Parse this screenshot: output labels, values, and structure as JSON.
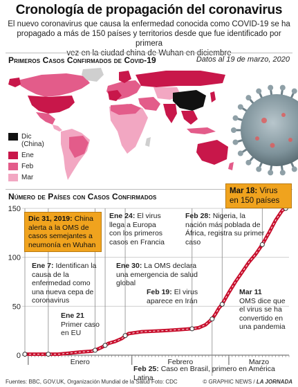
{
  "title": "Cronología de propagación del coronavirus",
  "subtitle": [
    "El nuevo coronavirus que causa la enfermedad conocida como COVID-19 se ha",
    "propagado a más de 150 países y territorios desde que fue identificado por primera",
    "vez en la ciudad china de Wuhan en diciembre"
  ],
  "map_section": {
    "heading": "Primeros Casos Confirmados de Covid-19",
    "date_note": "Datos al 19 de marzo, 2020",
    "legend": [
      {
        "label": "Dic",
        "sublabel": "(China)",
        "color": "#111111"
      },
      {
        "label": "Ene",
        "color": "#c8174a"
      },
      {
        "label": "Feb",
        "color": "#e35c8a"
      },
      {
        "label": "Mar",
        "color": "#f2a7c2"
      }
    ],
    "no_data_color": "#cfcfcf"
  },
  "chart_section": {
    "heading": "Número de Países con Casos Confirmados"
  },
  "chart_data": {
    "type": "line",
    "title": "Número de Países con Casos Confirmados",
    "xlabel": "",
    "ylabel": "",
    "ylim": [
      0,
      150
    ],
    "yticks": [
      0,
      50,
      100,
      150
    ],
    "x_labels": [
      "Enero",
      "Febrero",
      "Marzo"
    ],
    "line_color": "#c8102e",
    "series": [
      {
        "values": [
          {
            "x": "2019-12-31",
            "y": 1
          },
          {
            "x": "2020-01-10",
            "y": 1
          },
          {
            "x": "2020-01-13",
            "y": 2
          },
          {
            "x": "2020-01-16",
            "y": 3
          },
          {
            "x": "2020-01-20",
            "y": 4
          },
          {
            "x": "2020-01-21",
            "y": 5
          },
          {
            "x": "2020-01-23",
            "y": 8
          },
          {
            "x": "2020-01-24",
            "y": 10
          },
          {
            "x": "2020-01-25",
            "y": 12
          },
          {
            "x": "2020-01-27",
            "y": 14
          },
          {
            "x": "2020-01-29",
            "y": 17
          },
          {
            "x": "2020-01-31",
            "y": 22
          },
          {
            "x": "2020-02-04",
            "y": 24
          },
          {
            "x": "2020-02-10",
            "y": 25
          },
          {
            "x": "2020-02-15",
            "y": 26
          },
          {
            "x": "2020-02-19",
            "y": 27
          },
          {
            "x": "2020-02-21",
            "y": 28
          },
          {
            "x": "2020-02-23",
            "y": 31
          },
          {
            "x": "2020-02-25",
            "y": 37
          },
          {
            "x": "2020-02-26",
            "y": 42
          },
          {
            "x": "2020-02-27",
            "y": 48
          },
          {
            "x": "2020-02-28",
            "y": 52
          },
          {
            "x": "2020-02-29",
            "y": 58
          },
          {
            "x": "2020-03-01",
            "y": 64
          },
          {
            "x": "2020-03-03",
            "y": 75
          },
          {
            "x": "2020-03-05",
            "y": 85
          },
          {
            "x": "2020-03-07",
            "y": 95
          },
          {
            "x": "2020-03-09",
            "y": 103
          },
          {
            "x": "2020-03-11",
            "y": 113
          },
          {
            "x": "2020-03-13",
            "y": 125
          },
          {
            "x": "2020-03-15",
            "y": 138
          },
          {
            "x": "2020-03-17",
            "y": 148
          },
          {
            "x": "2020-03-18",
            "y": 150
          }
        ]
      }
    ],
    "annotations": [
      {
        "date": "Dic 31, 2019:",
        "text": "China alerta a la OMS de casos semejantes a neumonía en Wuhan",
        "highlight": true,
        "x": "2019-12-31",
        "y": 1
      },
      {
        "date": "Ene 7:",
        "text": "Identifican la causa de la enfermedad como una nueva cepa de coronavirus",
        "highlight": false,
        "x": "2020-01-07",
        "y": 1
      },
      {
        "date": "Ene 21",
        "text": "Primer caso en EU",
        "highlight": false,
        "x": "2020-01-21",
        "y": 5
      },
      {
        "date": "Ene 24:",
        "text": "El virus llega a Europa con los primeros casos en Francia",
        "highlight": false,
        "x": "2020-01-24",
        "y": 10
      },
      {
        "date": "Ene 30:",
        "text": "La OMS declara una emergencia de salud global",
        "highlight": false,
        "x": "2020-01-30",
        "y": 20
      },
      {
        "date": "Feb 19:",
        "text": "El virus aparece en Irán",
        "highlight": false,
        "x": "2020-02-19",
        "y": 27
      },
      {
        "date": "Feb 25:",
        "text": "Caso en Brasil, primero en América Latina",
        "highlight": false,
        "x": "2020-02-25",
        "y": 37
      },
      {
        "date": "Feb 28:",
        "text": "Nigeria, la nación más poblada de África, registra su primer caso",
        "highlight": false,
        "x": "2020-02-28",
        "y": 52
      },
      {
        "date": "Mar 11",
        "text": "OMS dice que el virus se ha convertido en una pandemia",
        "highlight": false,
        "x": "2020-03-11",
        "y": 113
      },
      {
        "date": "Mar 18:",
        "text": "Virus en 150 países",
        "highlight": true,
        "x": "2020-03-18",
        "y": 150
      }
    ]
  },
  "footer": {
    "sources": "Fuentes: BBC, GOV.UK, Organización Mundial de la Salud     Foto: CDC",
    "credit_prefix": "© GRAPHIC NEWS / ",
    "credit_brand": "LA JORNADA"
  }
}
